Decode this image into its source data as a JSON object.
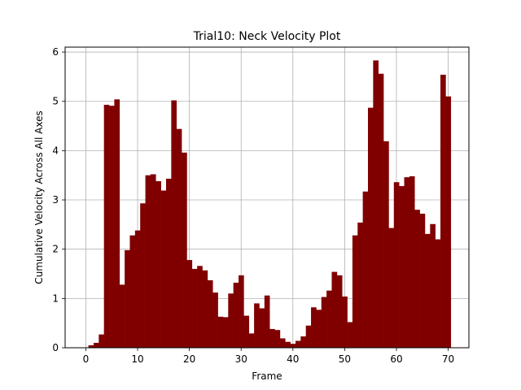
{
  "chart_data": {
    "type": "bar",
    "title": "Trial10: Neck Velocity Plot",
    "xlabel": "Frame",
    "ylabel": "Cumulative Velocity Across All Axes",
    "xlim": [
      -4,
      74
    ],
    "ylim": [
      0,
      6.1
    ],
    "x_ticks": [
      0,
      10,
      20,
      30,
      40,
      50,
      60,
      70
    ],
    "y_ticks": [
      0,
      1,
      2,
      3,
      4,
      5,
      6
    ],
    "grid": true,
    "bar_color": "#800000",
    "x": [
      0,
      1,
      2,
      3,
      4,
      5,
      6,
      7,
      8,
      9,
      10,
      11,
      12,
      13,
      14,
      15,
      16,
      17,
      18,
      19,
      20,
      21,
      22,
      23,
      24,
      25,
      26,
      27,
      28,
      29,
      30,
      31,
      32,
      33,
      34,
      35,
      36,
      37,
      38,
      39,
      40,
      41,
      42,
      43,
      44,
      45,
      46,
      47,
      48,
      49,
      50,
      51,
      52,
      53,
      54,
      55,
      56,
      57,
      58,
      59,
      60,
      61,
      62,
      63,
      64,
      65,
      66,
      67,
      68,
      69,
      70
    ],
    "values": [
      0,
      0.05,
      0.1,
      0.27,
      4.93,
      4.91,
      5.04,
      1.28,
      1.98,
      2.28,
      2.38,
      2.93,
      3.5,
      3.52,
      3.38,
      3.19,
      3.43,
      5.02,
      4.44,
      3.96,
      1.78,
      1.6,
      1.66,
      1.57,
      1.37,
      1.12,
      0.63,
      0.62,
      1.1,
      1.32,
      1.47,
      0.65,
      0.29,
      0.9,
      0.8,
      1.06,
      0.38,
      0.36,
      0.19,
      0.12,
      0.08,
      0.14,
      0.23,
      0.45,
      0.82,
      0.77,
      1.03,
      1.16,
      1.54,
      1.47,
      1.04,
      0.52,
      2.28,
      2.54,
      3.17,
      4.87,
      5.83,
      5.56,
      4.19,
      2.43,
      3.36,
      3.28,
      3.46,
      3.48,
      2.8,
      2.72,
      2.31,
      2.51,
      2.2,
      5.54,
      5.1
    ]
  }
}
